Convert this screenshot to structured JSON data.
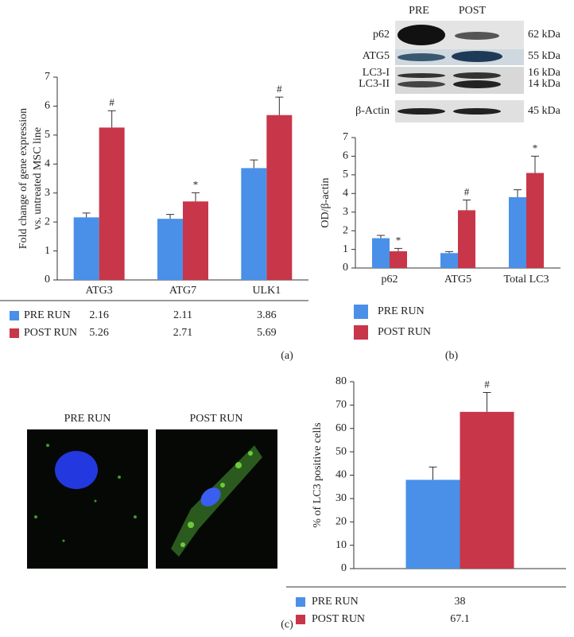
{
  "chart_data": [
    {
      "type": "bar",
      "caption": "(a)",
      "ylabel": [
        "Fold change of gene expression",
        "vs. untreated MSC line"
      ],
      "categories": [
        "ATG3",
        "ATG7",
        "ULK1"
      ],
      "series": [
        {
          "name": "PRE RUN",
          "color": "#4a90e8",
          "values": [
            2.16,
            2.11,
            3.86
          ],
          "errors": [
            0.15,
            0.15,
            0.28
          ]
        },
        {
          "name": "POST RUN",
          "color": "#c8364a",
          "values": [
            5.26,
            2.71,
            5.69
          ],
          "errors": [
            0.58,
            0.3,
            0.62
          ],
          "markers": [
            "#",
            "*",
            "#"
          ]
        }
      ],
      "ylim": [
        0,
        7
      ],
      "yticks": [
        0,
        1,
        2,
        3,
        4,
        5,
        6,
        7
      ]
    },
    {
      "type": "bar",
      "caption": "(b)",
      "ylabel": [
        "OD/β-actin"
      ],
      "categories": [
        "p62",
        "ATG5",
        "Total LC3"
      ],
      "series": [
        {
          "name": "PRE RUN",
          "color": "#4a90e8",
          "values": [
            1.6,
            0.8,
            3.8
          ],
          "errors": [
            0.15,
            0.08,
            0.4
          ]
        },
        {
          "name": "POST RUN",
          "color": "#c8364a",
          "values": [
            0.9,
            3.1,
            5.1
          ],
          "errors": [
            0.15,
            0.55,
            0.9
          ],
          "markers": [
            "*",
            "#",
            "*"
          ]
        }
      ],
      "ylim": [
        0,
        7
      ],
      "yticks": [
        0,
        1,
        2,
        3,
        4,
        5,
        6,
        7
      ]
    },
    {
      "type": "bar",
      "caption": "(c)",
      "ylabel": [
        "% of LC3 positive cells"
      ],
      "categories": [
        null
      ],
      "series": [
        {
          "name": "PRE RUN",
          "color": "#4a90e8",
          "values": [
            38
          ],
          "errors": [
            5.5
          ]
        },
        {
          "name": "POST RUN",
          "color": "#c8364a",
          "values": [
            67.1
          ],
          "errors": [
            8.3
          ],
          "markers": [
            "#"
          ]
        }
      ],
      "ylim": [
        0,
        80
      ],
      "yticks": [
        0,
        10,
        20,
        30,
        40,
        50,
        60,
        70,
        80
      ]
    }
  ],
  "blot": {
    "lanes": [
      "PRE",
      "POST"
    ],
    "rows": [
      {
        "label": "p62",
        "size": "62 kDa"
      },
      {
        "label": "ATG5",
        "size": "55 kDa"
      },
      {
        "label": "LC3-I",
        "size": "16 kDa"
      },
      {
        "label": "LC3-II",
        "size": "14 kDa"
      },
      {
        "label": "β-Actin",
        "size": "45 kDa"
      }
    ]
  },
  "micrographs": [
    "PRE RUN",
    "POST RUN"
  ]
}
